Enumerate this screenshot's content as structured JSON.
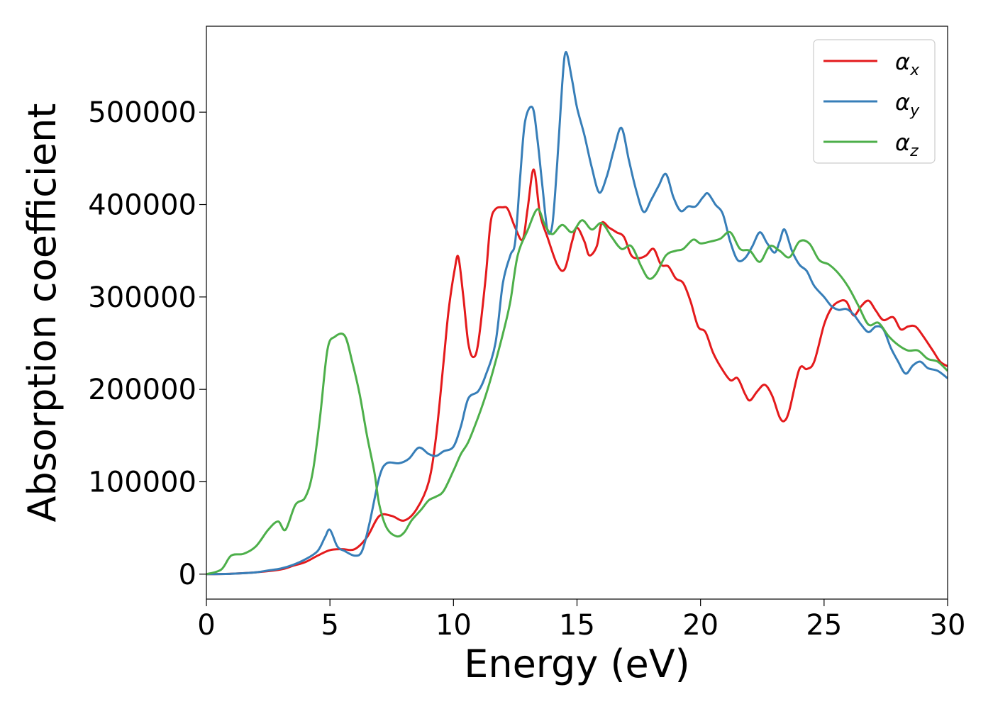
{
  "chart_data": {
    "type": "line",
    "title": "",
    "xlabel": "Energy (eV)",
    "ylabel": "Absorption coefficient",
    "xlim": [
      0,
      30
    ],
    "ylim": [
      -27000,
      593000
    ],
    "xticks": [
      0,
      5,
      10,
      15,
      20,
      25,
      30
    ],
    "xtick_labels": [
      "0",
      "5",
      "10",
      "15",
      "20",
      "25",
      "30"
    ],
    "yticks": [
      0,
      100000,
      200000,
      300000,
      400000,
      500000
    ],
    "ytick_labels": [
      "0",
      "100000",
      "200000",
      "300000",
      "400000",
      "500000"
    ],
    "grid": false,
    "legend_position": "top-right",
    "series": [
      {
        "name": "α",
        "subscript": "x",
        "color": "#e41a1c",
        "points": [
          [
            0,
            0
          ],
          [
            1,
            500
          ],
          [
            2,
            2000
          ],
          [
            3,
            5000
          ],
          [
            3.5,
            9000
          ],
          [
            4,
            13000
          ],
          [
            4.5,
            20000
          ],
          [
            5,
            26000
          ],
          [
            5.5,
            27000
          ],
          [
            6,
            27000
          ],
          [
            6.5,
            40000
          ],
          [
            7,
            63000
          ],
          [
            7.5,
            63000
          ],
          [
            8,
            58000
          ],
          [
            8.5,
            70000
          ],
          [
            9,
            100000
          ],
          [
            9.3,
            150000
          ],
          [
            9.6,
            230000
          ],
          [
            9.8,
            285000
          ],
          [
            10.05,
            330000
          ],
          [
            10.2,
            343000
          ],
          [
            10.4,
            300000
          ],
          [
            10.6,
            250000
          ],
          [
            10.8,
            235000
          ],
          [
            11,
            250000
          ],
          [
            11.3,
            320000
          ],
          [
            11.5,
            380000
          ],
          [
            11.7,
            395000
          ],
          [
            12,
            397000
          ],
          [
            12.2,
            395000
          ],
          [
            12.5,
            375000
          ],
          [
            12.8,
            362000
          ],
          [
            13,
            395000
          ],
          [
            13.25,
            438000
          ],
          [
            13.5,
            390000
          ],
          [
            13.8,
            365000
          ],
          [
            14.2,
            335000
          ],
          [
            14.5,
            330000
          ],
          [
            14.8,
            360000
          ],
          [
            15,
            375000
          ],
          [
            15.3,
            360000
          ],
          [
            15.5,
            345000
          ],
          [
            15.8,
            355000
          ],
          [
            16,
            380000
          ],
          [
            16.3,
            375000
          ],
          [
            16.6,
            370000
          ],
          [
            16.9,
            365000
          ],
          [
            17.2,
            345000
          ],
          [
            17.5,
            342000
          ],
          [
            17.8,
            345000
          ],
          [
            18.1,
            352000
          ],
          [
            18.4,
            335000
          ],
          [
            18.7,
            333000
          ],
          [
            19,
            320000
          ],
          [
            19.3,
            315000
          ],
          [
            19.6,
            295000
          ],
          [
            19.9,
            268000
          ],
          [
            20.2,
            262000
          ],
          [
            20.5,
            240000
          ],
          [
            20.8,
            225000
          ],
          [
            21.2,
            210000
          ],
          [
            21.5,
            212000
          ],
          [
            21.8,
            195000
          ],
          [
            22,
            188000
          ],
          [
            22.3,
            198000
          ],
          [
            22.6,
            205000
          ],
          [
            22.9,
            193000
          ],
          [
            23.2,
            170000
          ],
          [
            23.4,
            166000
          ],
          [
            23.6,
            178000
          ],
          [
            24,
            222000
          ],
          [
            24.3,
            222000
          ],
          [
            24.6,
            230000
          ],
          [
            25,
            270000
          ],
          [
            25.3,
            288000
          ],
          [
            25.6,
            295000
          ],
          [
            25.9,
            295000
          ],
          [
            26.2,
            280000
          ],
          [
            26.5,
            290000
          ],
          [
            26.8,
            296000
          ],
          [
            27.1,
            285000
          ],
          [
            27.4,
            275000
          ],
          [
            27.8,
            278000
          ],
          [
            28.1,
            265000
          ],
          [
            28.4,
            268000
          ],
          [
            28.7,
            268000
          ],
          [
            29,
            258000
          ],
          [
            29.4,
            242000
          ],
          [
            29.7,
            230000
          ],
          [
            30,
            225000
          ]
        ]
      },
      {
        "name": "α",
        "subscript": "y",
        "color": "#377eb8",
        "points": [
          [
            0,
            0
          ],
          [
            1,
            500
          ],
          [
            2,
            2000
          ],
          [
            2.5,
            4000
          ],
          [
            3,
            6000
          ],
          [
            3.5,
            10000
          ],
          [
            4,
            16000
          ],
          [
            4.5,
            25000
          ],
          [
            4.8,
            40000
          ],
          [
            5,
            48000
          ],
          [
            5.3,
            30000
          ],
          [
            5.6,
            25000
          ],
          [
            6,
            20000
          ],
          [
            6.3,
            25000
          ],
          [
            6.6,
            55000
          ],
          [
            7,
            105000
          ],
          [
            7.3,
            120000
          ],
          [
            7.8,
            120000
          ],
          [
            8.2,
            125000
          ],
          [
            8.6,
            137000
          ],
          [
            9,
            130000
          ],
          [
            9.3,
            128000
          ],
          [
            9.6,
            133000
          ],
          [
            10,
            138000
          ],
          [
            10.3,
            160000
          ],
          [
            10.6,
            190000
          ],
          [
            11,
            198000
          ],
          [
            11.3,
            215000
          ],
          [
            11.7,
            250000
          ],
          [
            12,
            315000
          ],
          [
            12.3,
            345000
          ],
          [
            12.5,
            360000
          ],
          [
            12.7,
            430000
          ],
          [
            12.9,
            490000
          ],
          [
            13.2,
            505000
          ],
          [
            13.4,
            470000
          ],
          [
            13.6,
            420000
          ],
          [
            13.8,
            373000
          ],
          [
            14,
            378000
          ],
          [
            14.2,
            445000
          ],
          [
            14.4,
            530000
          ],
          [
            14.55,
            565000
          ],
          [
            14.8,
            535000
          ],
          [
            15,
            505000
          ],
          [
            15.3,
            475000
          ],
          [
            15.6,
            440000
          ],
          [
            15.9,
            413000
          ],
          [
            16.2,
            430000
          ],
          [
            16.5,
            460000
          ],
          [
            16.8,
            483000
          ],
          [
            17.1,
            448000
          ],
          [
            17.4,
            415000
          ],
          [
            17.7,
            392000
          ],
          [
            18,
            405000
          ],
          [
            18.3,
            420000
          ],
          [
            18.6,
            433000
          ],
          [
            18.9,
            408000
          ],
          [
            19.2,
            393000
          ],
          [
            19.5,
            398000
          ],
          [
            19.8,
            398000
          ],
          [
            20.1,
            408000
          ],
          [
            20.3,
            412000
          ],
          [
            20.6,
            400000
          ],
          [
            20.9,
            390000
          ],
          [
            21.2,
            360000
          ],
          [
            21.5,
            340000
          ],
          [
            21.8,
            342000
          ],
          [
            22.1,
            355000
          ],
          [
            22.4,
            370000
          ],
          [
            22.7,
            358000
          ],
          [
            23,
            348000
          ],
          [
            23.2,
            360000
          ],
          [
            23.4,
            373000
          ],
          [
            23.7,
            350000
          ],
          [
            24,
            335000
          ],
          [
            24.3,
            328000
          ],
          [
            24.6,
            312000
          ],
          [
            25,
            300000
          ],
          [
            25.3,
            290000
          ],
          [
            25.6,
            286000
          ],
          [
            25.9,
            287000
          ],
          [
            26.2,
            281000
          ],
          [
            26.5,
            270000
          ],
          [
            26.8,
            262000
          ],
          [
            27.1,
            268000
          ],
          [
            27.4,
            265000
          ],
          [
            27.7,
            245000
          ],
          [
            28,
            230000
          ],
          [
            28.3,
            217000
          ],
          [
            28.6,
            226000
          ],
          [
            28.9,
            230000
          ],
          [
            29.2,
            223000
          ],
          [
            29.6,
            220000
          ],
          [
            30,
            212000
          ]
        ]
      },
      {
        "name": "α",
        "subscript": "z",
        "color": "#4daf4a",
        "points": [
          [
            0,
            0
          ],
          [
            0.6,
            5000
          ],
          [
            1,
            20000
          ],
          [
            1.5,
            22000
          ],
          [
            2,
            30000
          ],
          [
            2.5,
            48000
          ],
          [
            2.9,
            57000
          ],
          [
            3.2,
            48000
          ],
          [
            3.6,
            75000
          ],
          [
            4,
            83000
          ],
          [
            4.3,
            110000
          ],
          [
            4.6,
            170000
          ],
          [
            4.9,
            243000
          ],
          [
            5.2,
            257000
          ],
          [
            5.6,
            258000
          ],
          [
            5.9,
            230000
          ],
          [
            6.2,
            195000
          ],
          [
            6.5,
            150000
          ],
          [
            6.8,
            110000
          ],
          [
            7,
            75000
          ],
          [
            7.3,
            50000
          ],
          [
            7.7,
            41000
          ],
          [
            8,
            45000
          ],
          [
            8.3,
            58000
          ],
          [
            8.7,
            70000
          ],
          [
            9,
            80000
          ],
          [
            9.3,
            84000
          ],
          [
            9.6,
            90000
          ],
          [
            10,
            112000
          ],
          [
            10.3,
            130000
          ],
          [
            10.6,
            143000
          ],
          [
            11,
            170000
          ],
          [
            11.3,
            193000
          ],
          [
            11.6,
            220000
          ],
          [
            12,
            260000
          ],
          [
            12.3,
            295000
          ],
          [
            12.6,
            345000
          ],
          [
            13,
            372000
          ],
          [
            13.4,
            395000
          ],
          [
            13.7,
            378000
          ],
          [
            14,
            368000
          ],
          [
            14.4,
            378000
          ],
          [
            14.8,
            370000
          ],
          [
            15.2,
            383000
          ],
          [
            15.6,
            373000
          ],
          [
            16,
            380000
          ],
          [
            16.4,
            365000
          ],
          [
            16.8,
            352000
          ],
          [
            17.2,
            355000
          ],
          [
            17.6,
            333000
          ],
          [
            17.9,
            320000
          ],
          [
            18.2,
            325000
          ],
          [
            18.6,
            345000
          ],
          [
            19,
            350000
          ],
          [
            19.3,
            352000
          ],
          [
            19.7,
            362000
          ],
          [
            20,
            358000
          ],
          [
            20.4,
            360000
          ],
          [
            20.8,
            363000
          ],
          [
            21.2,
            370000
          ],
          [
            21.6,
            352000
          ],
          [
            22,
            350000
          ],
          [
            22.4,
            338000
          ],
          [
            22.8,
            355000
          ],
          [
            23.2,
            350000
          ],
          [
            23.6,
            343000
          ],
          [
            24,
            360000
          ],
          [
            24.4,
            358000
          ],
          [
            24.8,
            340000
          ],
          [
            25.2,
            335000
          ],
          [
            25.6,
            325000
          ],
          [
            26,
            310000
          ],
          [
            26.4,
            290000
          ],
          [
            26.8,
            270000
          ],
          [
            27.2,
            272000
          ],
          [
            27.6,
            258000
          ],
          [
            28,
            248000
          ],
          [
            28.4,
            242000
          ],
          [
            28.8,
            242000
          ],
          [
            29.2,
            233000
          ],
          [
            29.6,
            230000
          ],
          [
            30,
            220000
          ]
        ]
      }
    ]
  }
}
